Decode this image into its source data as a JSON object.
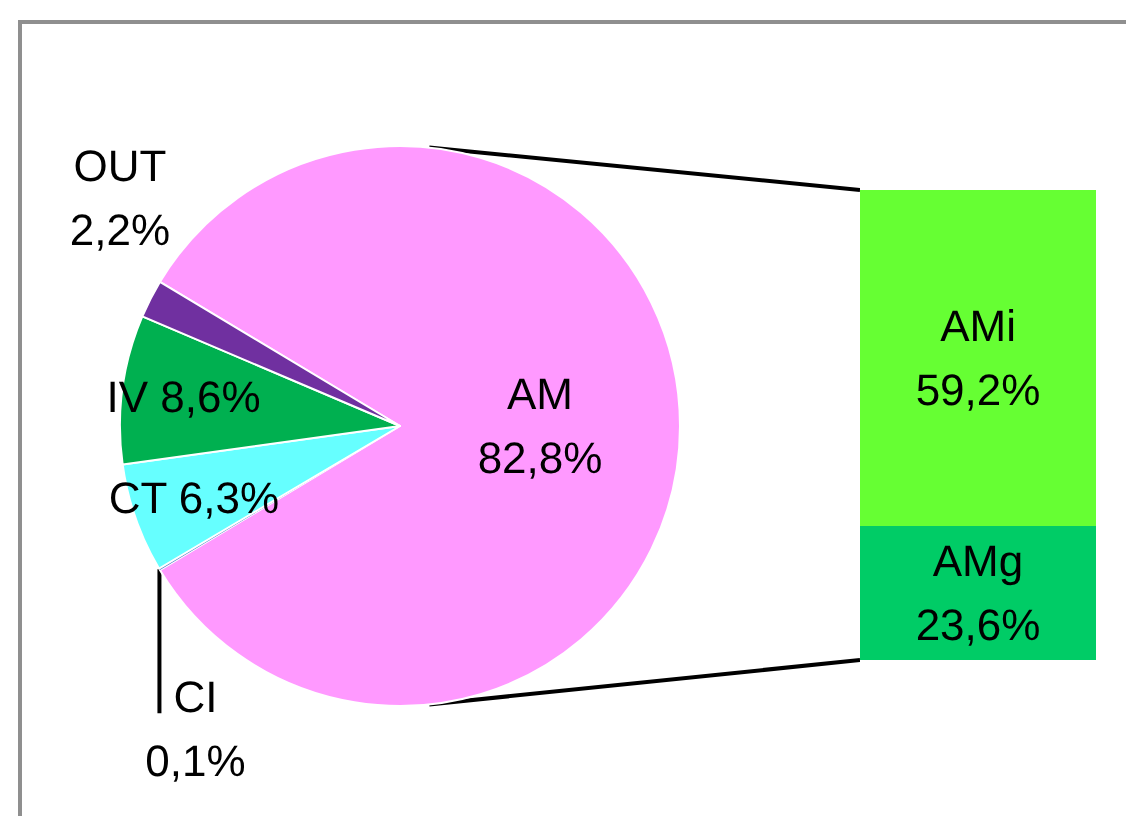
{
  "chart_data": [
    {
      "type": "pie",
      "categories": [
        "AM",
        "CI",
        "CT",
        "IV",
        "OUT"
      ],
      "values": [
        82.8,
        0.1,
        6.3,
        8.6,
        2.2
      ],
      "colors": [
        "#ff99ff",
        "#4472c4",
        "#66ffff",
        "#00b050",
        "#7030a0"
      ],
      "value_labels": [
        "82,8%",
        "0,1%",
        "6,3%",
        "8,6%",
        "2,2%"
      ]
    },
    {
      "type": "bar",
      "categories": [
        null
      ],
      "stacked": true,
      "tick_labels": false,
      "series": [
        {
          "name": "AMg",
          "color": "#00cc66",
          "values": [
            23.6
          ],
          "value_labels": [
            "23,6%"
          ]
        },
        {
          "name": "AMi",
          "color": "#66ff33",
          "values": [
            59.2
          ],
          "value_labels": [
            "59,2%"
          ]
        }
      ]
    }
  ]
}
